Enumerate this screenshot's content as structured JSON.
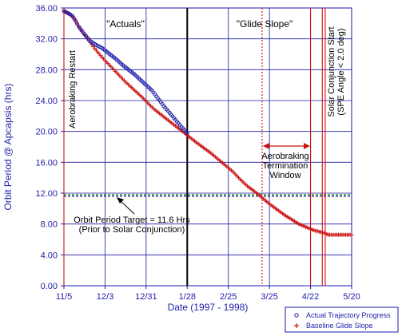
{
  "chart_data": {
    "type": "scatter",
    "xlabel": "Date (1997 - 1998)",
    "ylabel": "Orbit Period @ Apcapsis (hrs)",
    "x_ticks": [
      "11/5",
      "12/3",
      "12/31",
      "1/28",
      "2/25",
      "3/25",
      "4/22",
      "5/20"
    ],
    "x_days": [
      0,
      28,
      56,
      84,
      112,
      140,
      168,
      196
    ],
    "xlim": [
      0,
      196
    ],
    "y_ticks": [
      "0.00",
      "4.00",
      "8.00",
      "12.00",
      "16.00",
      "20.00",
      "24.00",
      "28.00",
      "32.00",
      "36.00"
    ],
    "ylim": [
      0,
      36
    ],
    "grid": true,
    "series": [
      {
        "name": "Actual Trajectory Progress",
        "marker": "circle",
        "color": "#1a1aa8",
        "x_days": [
          0,
          2,
          4,
          6,
          8,
          10,
          14,
          18,
          22,
          24,
          26,
          28,
          32,
          36,
          40,
          44,
          48,
          52,
          56,
          60,
          64,
          68,
          72,
          76,
          80,
          84
        ],
        "values": [
          35.6,
          35.4,
          35.2,
          34.9,
          34.3,
          33.6,
          32.6,
          31.7,
          31.2,
          31.0,
          30.8,
          30.5,
          29.9,
          29.3,
          28.6,
          28.0,
          27.4,
          26.7,
          26.0,
          25.3,
          24.3,
          23.3,
          22.4,
          21.5,
          20.6,
          19.8
        ]
      },
      {
        "name": "Baseline Glide Slope",
        "marker": "plus",
        "color": "#cc1111",
        "x_days": [
          0,
          2,
          4,
          6,
          8,
          10,
          14,
          18,
          22,
          26,
          30,
          34,
          38,
          42,
          46,
          50,
          54,
          58,
          62,
          66,
          70,
          74,
          78,
          82,
          86,
          90,
          95,
          100,
          105,
          110,
          115,
          120,
          125,
          130,
          135,
          140,
          145,
          150,
          155,
          160,
          165,
          170,
          174,
          178,
          180,
          183,
          186,
          190,
          193,
          196
        ],
        "values": [
          35.6,
          35.4,
          35.2,
          34.9,
          34.3,
          33.6,
          32.5,
          31.5,
          30.5,
          29.6,
          28.8,
          28.0,
          27.2,
          26.4,
          25.7,
          25.0,
          24.3,
          23.5,
          22.8,
          22.2,
          21.6,
          21.0,
          20.4,
          19.8,
          19.2,
          18.6,
          17.9,
          17.2,
          16.4,
          15.6,
          14.8,
          13.8,
          12.9,
          12.2,
          11.4,
          10.6,
          9.9,
          9.2,
          8.6,
          8.0,
          7.6,
          7.2,
          7.0,
          6.8,
          6.6,
          6.6,
          6.6,
          6.6,
          6.6,
          6.6
        ]
      }
    ],
    "reference_lines": [
      {
        "kind": "horizontal",
        "y": 11.6,
        "color": "#1a1aa8"
      },
      {
        "kind": "horizontal",
        "y": 11.8,
        "color": "#1a8a1a"
      },
      {
        "kind": "vertical",
        "x_day": 84,
        "color": "#000000"
      },
      {
        "kind": "vertical",
        "x_day": 0,
        "color": "#cc1111"
      },
      {
        "kind": "vertical",
        "x_day": 135,
        "color": "#cc1111",
        "dashed": true
      },
      {
        "kind": "vertical",
        "x_day": 168,
        "color": "#cc1111"
      },
      {
        "kind": "vertical",
        "x_day": 176,
        "color": "#cc1111"
      },
      {
        "kind": "vertical",
        "x_day": 178,
        "color": "#cc1111"
      }
    ],
    "annotations": {
      "actuals": "\"Actuals\"",
      "glide_slope": "\"Glide Slope\"",
      "aerobraking_restart": "Aerobraking Restart",
      "termination_1": "Aerobraking",
      "termination_2": "Termination",
      "termination_3": "Window",
      "target_1": "Orbit Period Target = 11.6 Hrs",
      "target_2": "(Prior to Solar Conjunction)",
      "solar_1": "Solar Conjunction Start",
      "solar_2": "(SPE Angle < 2.0 deg)"
    },
    "legend": {
      "placement": "bottom-right",
      "items": [
        "Actual Trajectory Progress",
        "Baseline Glide Slope"
      ]
    }
  }
}
